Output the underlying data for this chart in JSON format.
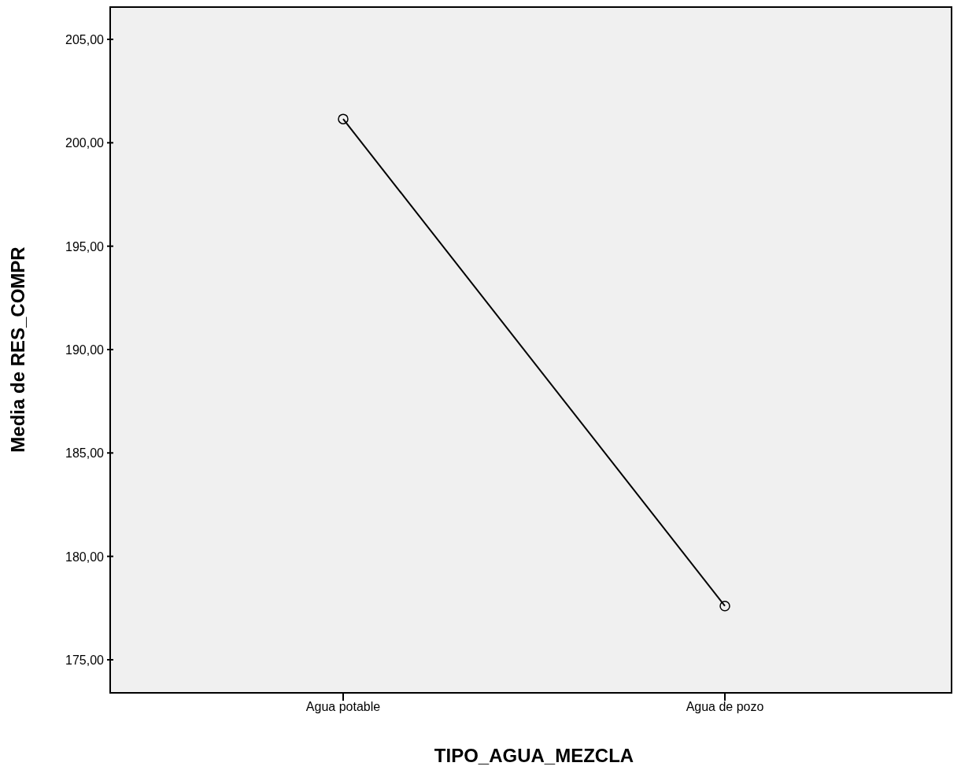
{
  "chart_data": {
    "type": "line",
    "xlabel": "TIPO_AGUA_MEZCLA",
    "ylabel": "Media de RES_COMPR",
    "categories": [
      "Agua potable",
      "Agua de pozo"
    ],
    "series": [
      {
        "color": "#000000",
        "values": [
          201.15,
          177.6
        ]
      }
    ],
    "ylim": [
      173.4,
      206.6
    ],
    "yticks": [
      {
        "value": 175,
        "label": "175,00"
      },
      {
        "value": 180,
        "label": "180,00"
      },
      {
        "value": 185,
        "label": "185,00"
      },
      {
        "value": 190,
        "label": "190,00"
      },
      {
        "value": 195,
        "label": "195,00"
      },
      {
        "value": 200,
        "label": "200,00"
      },
      {
        "value": 205,
        "label": "205,00"
      }
    ],
    "marker": "circle",
    "line_style": "solid"
  }
}
